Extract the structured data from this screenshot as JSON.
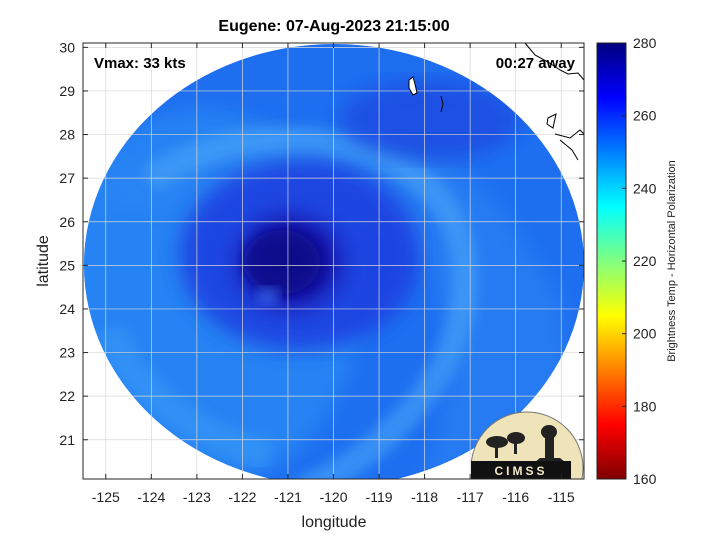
{
  "chart_data": {
    "type": "heatmap",
    "title": "Eugene: 07-Aug-2023 21:15:00",
    "annotations": {
      "vmax": "Vmax: 33 kts",
      "time_away": "00:27 away"
    },
    "xlabel": "longitude",
    "ylabel": "latitude",
    "xlim": [
      -125.5,
      -114.5
    ],
    "ylim": [
      20.1,
      30.1
    ],
    "xticks": [
      -125,
      -124,
      -123,
      -122,
      -121,
      -120,
      -119,
      -118,
      -117,
      -116,
      -115
    ],
    "yticks": [
      21,
      22,
      23,
      24,
      25,
      26,
      27,
      28,
      29,
      30
    ],
    "grid": true,
    "storm_center": {
      "lon": -121.0,
      "lat": 25.0
    },
    "colorbar": {
      "label": "Brightness Temp - Horizontal Polarization",
      "range": [
        160,
        280
      ],
      "ticks": [
        160,
        180,
        200,
        220,
        240,
        260,
        280
      ],
      "colormap": "jet",
      "position": "right"
    },
    "logo": "CIMSS"
  }
}
